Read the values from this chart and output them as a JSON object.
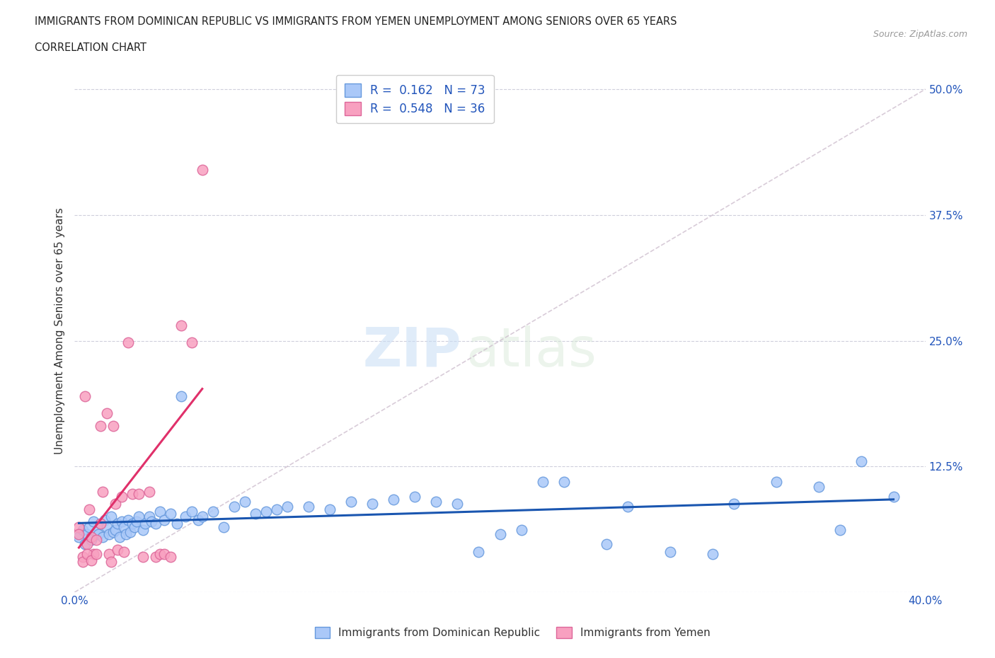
{
  "title_line1": "IMMIGRANTS FROM DOMINICAN REPUBLIC VS IMMIGRANTS FROM YEMEN UNEMPLOYMENT AMONG SENIORS OVER 65 YEARS",
  "title_line2": "CORRELATION CHART",
  "source": "Source: ZipAtlas.com",
  "ylabel": "Unemployment Among Seniors over 65 years",
  "watermark_zip": "ZIP",
  "watermark_atlas": "atlas",
  "xlim": [
    0.0,
    0.4
  ],
  "ylim": [
    0.0,
    0.52
  ],
  "yticks": [
    0.0,
    0.125,
    0.25,
    0.375,
    0.5
  ],
  "xticks": [
    0.0,
    0.1,
    0.2,
    0.3,
    0.4
  ],
  "blue_R": "0.162",
  "blue_N": "73",
  "pink_R": "0.548",
  "pink_N": "36",
  "blue_color": "#aac8f8",
  "pink_color": "#f8a0c0",
  "blue_edge_color": "#6699dd",
  "pink_edge_color": "#dd6699",
  "blue_line_color": "#1a56b0",
  "pink_line_color": "#e0306a",
  "diag_line_color": "#ccbbcc",
  "legend_label_blue": "Immigrants from Dominican Republic",
  "legend_label_pink": "Immigrants from Yemen",
  "blue_scatter_x": [
    0.002,
    0.004,
    0.005,
    0.006,
    0.007,
    0.008,
    0.009,
    0.01,
    0.011,
    0.012,
    0.013,
    0.014,
    0.015,
    0.016,
    0.017,
    0.018,
    0.019,
    0.02,
    0.021,
    0.022,
    0.023,
    0.024,
    0.025,
    0.026,
    0.027,
    0.028,
    0.029,
    0.03,
    0.032,
    0.033,
    0.035,
    0.036,
    0.038,
    0.04,
    0.042,
    0.045,
    0.048,
    0.05,
    0.052,
    0.055,
    0.058,
    0.06,
    0.065,
    0.07,
    0.075,
    0.08,
    0.085,
    0.09,
    0.095,
    0.1,
    0.11,
    0.12,
    0.13,
    0.14,
    0.15,
    0.16,
    0.17,
    0.18,
    0.19,
    0.2,
    0.21,
    0.22,
    0.23,
    0.25,
    0.26,
    0.28,
    0.3,
    0.31,
    0.33,
    0.35,
    0.36,
    0.37,
    0.385
  ],
  "blue_scatter_y": [
    0.055,
    0.062,
    0.048,
    0.058,
    0.065,
    0.052,
    0.07,
    0.06,
    0.058,
    0.068,
    0.055,
    0.072,
    0.065,
    0.058,
    0.075,
    0.06,
    0.062,
    0.068,
    0.055,
    0.07,
    0.065,
    0.058,
    0.072,
    0.06,
    0.068,
    0.065,
    0.07,
    0.075,
    0.062,
    0.068,
    0.075,
    0.07,
    0.068,
    0.08,
    0.072,
    0.078,
    0.068,
    0.195,
    0.075,
    0.08,
    0.072,
    0.075,
    0.08,
    0.065,
    0.085,
    0.09,
    0.078,
    0.08,
    0.082,
    0.085,
    0.085,
    0.082,
    0.09,
    0.088,
    0.092,
    0.095,
    0.09,
    0.088,
    0.04,
    0.058,
    0.062,
    0.11,
    0.11,
    0.048,
    0.085,
    0.04,
    0.038,
    0.088,
    0.11,
    0.105,
    0.062,
    0.13,
    0.095
  ],
  "pink_scatter_x": [
    0.002,
    0.004,
    0.005,
    0.006,
    0.007,
    0.008,
    0.009,
    0.01,
    0.012,
    0.013,
    0.015,
    0.016,
    0.017,
    0.018,
    0.019,
    0.02,
    0.022,
    0.023,
    0.025,
    0.027,
    0.03,
    0.032,
    0.035,
    0.038,
    0.04,
    0.042,
    0.045,
    0.05,
    0.055,
    0.06,
    0.002,
    0.004,
    0.006,
    0.008,
    0.01,
    0.012
  ],
  "pink_scatter_y": [
    0.065,
    0.035,
    0.195,
    0.048,
    0.082,
    0.055,
    0.038,
    0.052,
    0.165,
    0.1,
    0.178,
    0.038,
    0.03,
    0.165,
    0.088,
    0.042,
    0.095,
    0.04,
    0.248,
    0.098,
    0.098,
    0.035,
    0.1,
    0.035,
    0.038,
    0.038,
    0.035,
    0.265,
    0.248,
    0.42,
    0.058,
    0.03,
    0.038,
    0.032,
    0.038,
    0.068
  ]
}
